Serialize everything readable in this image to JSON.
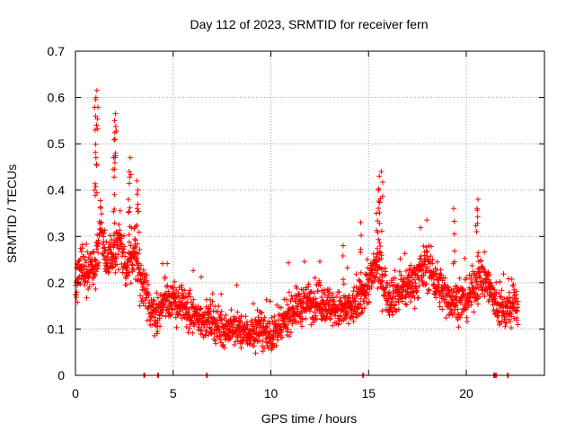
{
  "chart_data": {
    "type": "scatter",
    "title": "Day 112 of 2023, SRMTID for receiver fern",
    "xlabel": "GPS time / hours",
    "ylabel": "SRMTID / TECUs",
    "xlim": [
      0,
      24
    ],
    "ylim": [
      0,
      0.7
    ],
    "xticks": [
      0,
      5,
      10,
      15,
      20
    ],
    "xtick_labels": [
      "0",
      "5",
      "10",
      "15",
      "20"
    ],
    "yticks": [
      0,
      0.1,
      0.2,
      0.3,
      0.4,
      0.5,
      0.6,
      0.7
    ],
    "ytick_labels": [
      "0",
      "0.1",
      "0.2",
      "0.3",
      "0.4",
      "0.5",
      "0.6",
      "0.7"
    ],
    "grid": true,
    "marker": "+",
    "marker_color": "#ff0000",
    "series": [
      {
        "name": "SRMTID",
        "profile": [
          {
            "x": 0.0,
            "y": 0.19
          },
          {
            "x": 0.3,
            "y": 0.25
          },
          {
            "x": 0.6,
            "y": 0.23
          },
          {
            "x": 1.0,
            "y": 0.22
          },
          {
            "x": 1.3,
            "y": 0.33
          },
          {
            "x": 1.6,
            "y": 0.24
          },
          {
            "x": 2.0,
            "y": 0.26
          },
          {
            "x": 2.3,
            "y": 0.3
          },
          {
            "x": 2.6,
            "y": 0.22
          },
          {
            "x": 3.0,
            "y": 0.27
          },
          {
            "x": 3.4,
            "y": 0.2
          },
          {
            "x": 3.8,
            "y": 0.14
          },
          {
            "x": 4.2,
            "y": 0.13
          },
          {
            "x": 4.6,
            "y": 0.17
          },
          {
            "x": 5.0,
            "y": 0.16
          },
          {
            "x": 5.5,
            "y": 0.15
          },
          {
            "x": 6.0,
            "y": 0.13
          },
          {
            "x": 6.5,
            "y": 0.12
          },
          {
            "x": 7.0,
            "y": 0.12
          },
          {
            "x": 7.5,
            "y": 0.1
          },
          {
            "x": 8.0,
            "y": 0.1
          },
          {
            "x": 8.5,
            "y": 0.095
          },
          {
            "x": 9.0,
            "y": 0.09
          },
          {
            "x": 9.5,
            "y": 0.1
          },
          {
            "x": 10.0,
            "y": 0.085
          },
          {
            "x": 10.5,
            "y": 0.1
          },
          {
            "x": 11.0,
            "y": 0.14
          },
          {
            "x": 11.5,
            "y": 0.15
          },
          {
            "x": 12.0,
            "y": 0.16
          },
          {
            "x": 12.5,
            "y": 0.16
          },
          {
            "x": 13.0,
            "y": 0.15
          },
          {
            "x": 13.5,
            "y": 0.14
          },
          {
            "x": 14.0,
            "y": 0.14
          },
          {
            "x": 14.5,
            "y": 0.16
          },
          {
            "x": 15.0,
            "y": 0.2
          },
          {
            "x": 15.5,
            "y": 0.24
          },
          {
            "x": 16.0,
            "y": 0.17
          },
          {
            "x": 16.5,
            "y": 0.18
          },
          {
            "x": 17.0,
            "y": 0.19
          },
          {
            "x": 17.5,
            "y": 0.21
          },
          {
            "x": 18.0,
            "y": 0.24
          },
          {
            "x": 18.5,
            "y": 0.2
          },
          {
            "x": 19.0,
            "y": 0.17
          },
          {
            "x": 19.5,
            "y": 0.16
          },
          {
            "x": 20.0,
            "y": 0.16
          },
          {
            "x": 20.5,
            "y": 0.2
          },
          {
            "x": 21.0,
            "y": 0.21
          },
          {
            "x": 21.5,
            "y": 0.15
          },
          {
            "x": 22.0,
            "y": 0.14
          },
          {
            "x": 22.5,
            "y": 0.15
          },
          {
            "x": 22.8,
            "y": 0.15
          }
        ],
        "peaks": [
          {
            "x": 1.1,
            "y": 0.615
          },
          {
            "x": 1.05,
            "y": 0.6
          },
          {
            "x": 1.0,
            "y": 0.53
          },
          {
            "x": 1.05,
            "y": 0.47
          },
          {
            "x": 2.05,
            "y": 0.565
          },
          {
            "x": 2.0,
            "y": 0.55
          },
          {
            "x": 2.02,
            "y": 0.51
          },
          {
            "x": 1.95,
            "y": 0.47
          },
          {
            "x": 2.8,
            "y": 0.47
          },
          {
            "x": 2.75,
            "y": 0.44
          },
          {
            "x": 3.15,
            "y": 0.42
          },
          {
            "x": 3.2,
            "y": 0.4
          },
          {
            "x": 15.65,
            "y": 0.44
          },
          {
            "x": 15.55,
            "y": 0.43
          },
          {
            "x": 15.5,
            "y": 0.4
          },
          {
            "x": 19.35,
            "y": 0.36
          },
          {
            "x": 20.6,
            "y": 0.38
          },
          {
            "x": 20.55,
            "y": 0.36
          },
          {
            "x": 13.7,
            "y": 0.28
          },
          {
            "x": 14.6,
            "y": 0.33
          },
          {
            "x": 15.4,
            "y": 0.35
          }
        ],
        "zeros": [
          3.5,
          4.2,
          6.7,
          14.7,
          21.4,
          21.5,
          22.1
        ],
        "point_count": 2200,
        "scatter_amplitude": 0.045,
        "time_step_hours": 0.0103
      }
    ]
  }
}
